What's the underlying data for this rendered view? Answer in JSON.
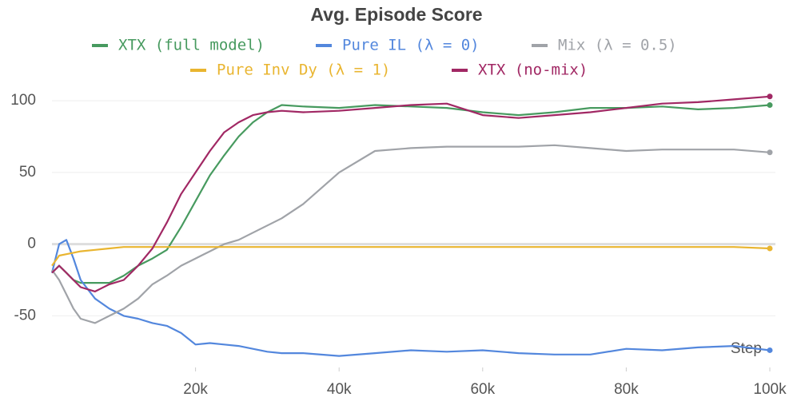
{
  "chart_data": {
    "type": "line",
    "title": "Avg. Episode Score",
    "x_label": "Step",
    "x": [
      0,
      1000,
      2000,
      3000,
      4000,
      6000,
      8000,
      10000,
      12000,
      14000,
      16000,
      18000,
      20000,
      22000,
      24000,
      26000,
      28000,
      30000,
      32000,
      35000,
      40000,
      45000,
      50000,
      55000,
      60000,
      65000,
      70000,
      75000,
      80000,
      85000,
      90000,
      95000,
      100000
    ],
    "series": [
      {
        "name": "XTX (full model)",
        "color": "#479a5f",
        "values": [
          -20,
          -15,
          -20,
          -25,
          -27,
          -27,
          -27,
          -22,
          -15,
          -10,
          -4,
          12,
          30,
          48,
          62,
          75,
          85,
          92,
          97,
          96,
          95,
          97,
          96,
          95,
          92,
          90,
          92,
          95,
          95,
          96,
          94,
          95,
          97
        ]
      },
      {
        "name": "Pure IL (λ = 0)",
        "color": "#5387dd",
        "values": [
          -20,
          0,
          3,
          -10,
          -25,
          -38,
          -45,
          -50,
          -52,
          -55,
          -57,
          -62,
          -70,
          -69,
          -70,
          -71,
          -73,
          -75,
          -76,
          -76,
          -78,
          -76,
          -74,
          -75,
          -74,
          -76,
          -77,
          -77,
          -73,
          -74,
          -72,
          -71,
          -74
        ]
      },
      {
        "name": "Mix (λ = 0.5)",
        "color": "#a0a3a8",
        "values": [
          -18,
          -25,
          -35,
          -45,
          -52,
          -55,
          -50,
          -45,
          -38,
          -28,
          -22,
          -15,
          -10,
          -5,
          0,
          3,
          8,
          13,
          18,
          28,
          50,
          65,
          67,
          68,
          68,
          68,
          69,
          67,
          65,
          66,
          66,
          66,
          64
        ]
      },
      {
        "name": "Pure Inv Dy (λ = 1)",
        "color": "#e9b530",
        "values": [
          -15,
          -8,
          -7,
          -6,
          -5,
          -4,
          -3,
          -2,
          -2,
          -2,
          -2,
          -2,
          -2,
          -2,
          -2,
          -2,
          -2,
          -2,
          -2,
          -2,
          -2,
          -2,
          -2,
          -2,
          -2,
          -2,
          -2,
          -2,
          -2,
          -2,
          -2,
          -2,
          -3
        ]
      },
      {
        "name": "XTX (no-mix)",
        "color": "#a12864",
        "values": [
          -20,
          -15,
          -20,
          -25,
          -30,
          -33,
          -28,
          -25,
          -15,
          -3,
          15,
          35,
          50,
          65,
          78,
          85,
          90,
          92,
          93,
          92,
          93,
          95,
          97,
          98,
          90,
          88,
          90,
          92,
          95,
          98,
          99,
          101,
          103
        ]
      }
    ],
    "xlim": [
      0,
      100000
    ],
    "xticks": [
      {
        "value": 20000,
        "label": "20k"
      },
      {
        "value": 40000,
        "label": "40k"
      },
      {
        "value": 60000,
        "label": "60k"
      },
      {
        "value": 80000,
        "label": "80k"
      },
      {
        "value": 100000,
        "label": "100k"
      }
    ],
    "ylim": [
      -86,
      109
    ],
    "yticks": [
      -50,
      0,
      50,
      100
    ],
    "grid": true
  }
}
